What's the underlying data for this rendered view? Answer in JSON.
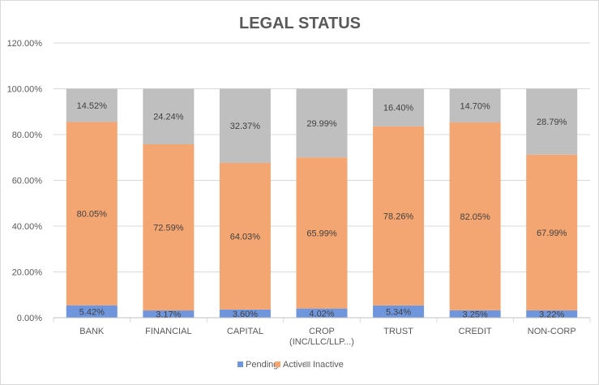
{
  "chart_data": {
    "type": "bar",
    "stacked": true,
    "title": "LEGAL STATUS",
    "xlabel": "",
    "ylabel": "",
    "ylim": [
      0,
      120
    ],
    "yticks": [
      "0.00%",
      "20.00%",
      "40.00%",
      "60.00%",
      "80.00%",
      "100.00%",
      "120.00%"
    ],
    "grid": true,
    "legend_position": "bottom",
    "categories": [
      [
        "BANK"
      ],
      [
        "FINANCIAL"
      ],
      [
        "CAPITAL"
      ],
      [
        "CROP",
        "(INC/LLC/LLP...)"
      ],
      [
        "TRUST"
      ],
      [
        "CREDIT"
      ],
      [
        "NON-CORP"
      ]
    ],
    "series": [
      {
        "name": "Pending",
        "color": "#6f96dc",
        "values": [
          5.42,
          3.17,
          3.6,
          4.02,
          5.34,
          3.25,
          3.22
        ],
        "labels": [
          "5.42%",
          "3.17%",
          "3.60%",
          "4.02%",
          "5.34%",
          "3.25%",
          "3.22%"
        ]
      },
      {
        "name": "Active",
        "color": "#f4a672",
        "values": [
          80.05,
          72.59,
          64.03,
          65.99,
          78.26,
          82.05,
          67.99
        ],
        "labels": [
          "80.05%",
          "72.59%",
          "64.03%",
          "65.99%",
          "78.26%",
          "82.05%",
          "67.99%"
        ]
      },
      {
        "name": "Inactive",
        "color": "#bfbfbf",
        "values": [
          14.52,
          24.24,
          32.37,
          29.99,
          16.4,
          14.7,
          28.79
        ],
        "labels": [
          "14.52%",
          "24.24%",
          "32.37%",
          "29.99%",
          "16.40%",
          "14.70%",
          "28.79%"
        ]
      }
    ]
  }
}
